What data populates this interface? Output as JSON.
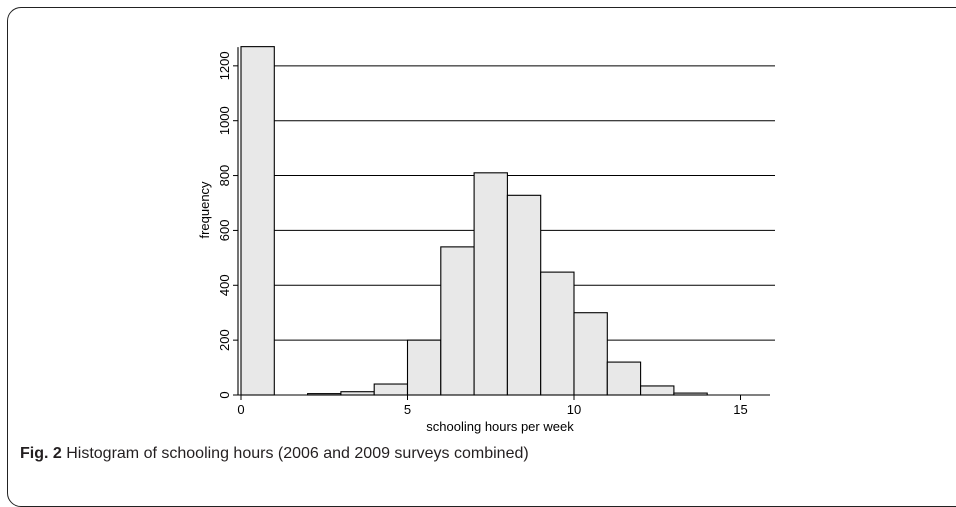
{
  "chart_data": {
    "type": "bar",
    "title": "",
    "xlabel": "schooling hours per week",
    "ylabel": "frequency",
    "xlim": [
      -1,
      15
    ],
    "ylim": [
      0,
      1250
    ],
    "xticks": [
      0,
      5,
      10,
      15
    ],
    "yticks": [
      0,
      200,
      400,
      600,
      800,
      1000,
      1200
    ],
    "grid": "horizontal",
    "bin_width": 1,
    "bins": [
      {
        "start": 0,
        "value": 1270
      },
      {
        "start": 1,
        "value": 0
      },
      {
        "start": 2,
        "value": 5
      },
      {
        "start": 3,
        "value": 12
      },
      {
        "start": 4,
        "value": 40
      },
      {
        "start": 5,
        "value": 200
      },
      {
        "start": 6,
        "value": 540
      },
      {
        "start": 7,
        "value": 810
      },
      {
        "start": 8,
        "value": 728
      },
      {
        "start": 9,
        "value": 448
      },
      {
        "start": 10,
        "value": 300
      },
      {
        "start": 11,
        "value": 120
      },
      {
        "start": 12,
        "value": 33
      },
      {
        "start": 13,
        "value": 7
      }
    ],
    "bar_fill": "#e8e8e8",
    "bar_stroke": "#000000"
  },
  "caption": {
    "label": "Fig. 2",
    "text": " Histogram of schooling hours (2006 and 2009 surveys combined)"
  }
}
